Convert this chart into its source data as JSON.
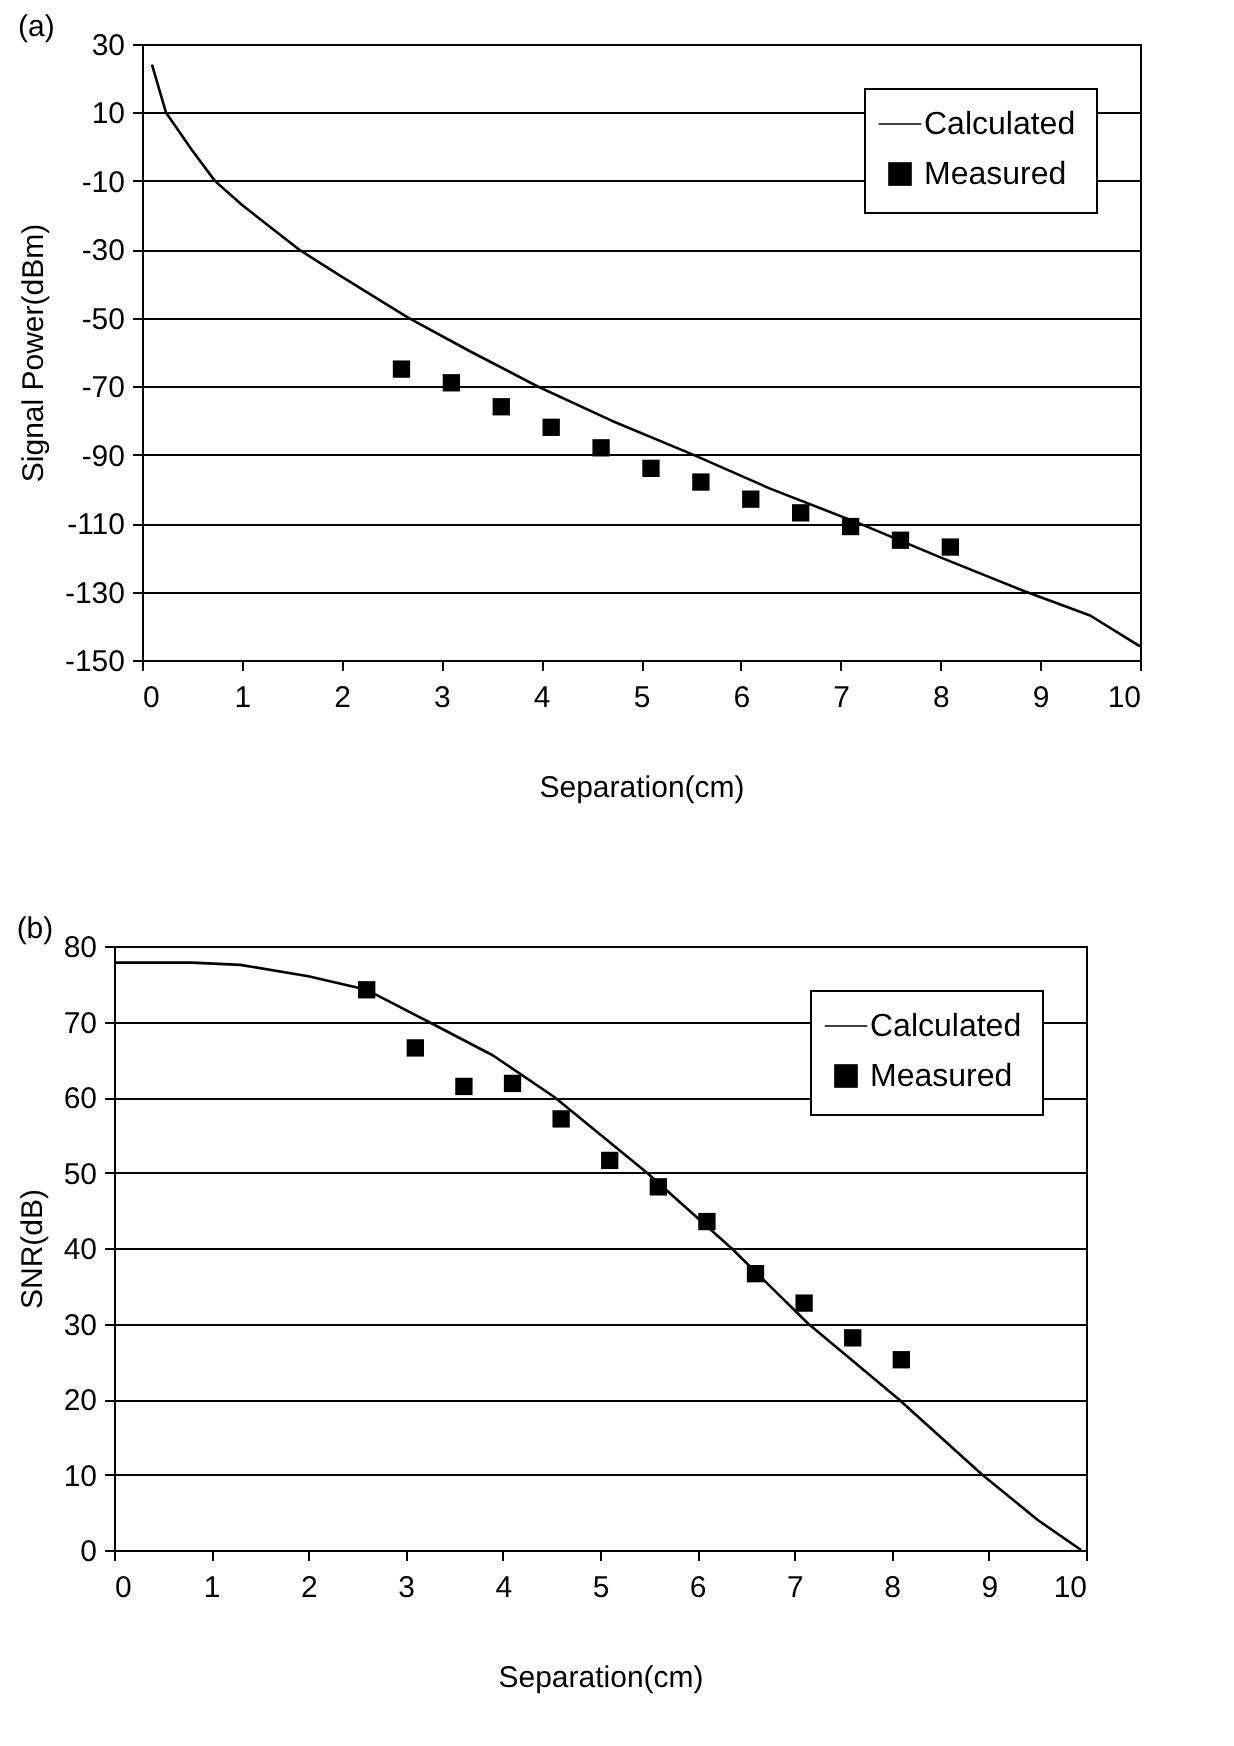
{
  "chart_data": [
    {
      "type": "line",
      "title": "(a)",
      "xlabel": "Separation(cm)",
      "ylabel": "Signal Power(dBm)",
      "xlim": [
        0,
        10
      ],
      "xticks": [
        0,
        1,
        2,
        3,
        4,
        5,
        6,
        7,
        8,
        9,
        10
      ],
      "ylim": [
        -150,
        30
      ],
      "yticks": [
        -150,
        -130,
        -110,
        -90,
        -70,
        -50,
        -30,
        -10,
        10,
        30
      ],
      "grid": "y",
      "legend": "top right",
      "series": [
        {
          "name": "Calculated",
          "type": "line",
          "color": "#000000",
          "x": [
            0.1,
            0.24,
            0.5,
            0.73,
            1.0,
            1.57,
            2.0,
            2.67,
            3.3,
            3.96,
            4.7,
            5.52,
            6.3,
            7.18,
            8.0,
            8.85,
            9.5,
            10.0
          ],
          "values": [
            24,
            10,
            -1,
            -10,
            -17,
            -30,
            -38,
            -50,
            -60,
            -70,
            -80,
            -90,
            -100,
            -110,
            -120,
            -130,
            -137,
            -146
          ]
        },
        {
          "name": "Measured",
          "type": "scatter",
          "marker": "square",
          "color": "#000000",
          "x": [
            2.6,
            3.1,
            3.6,
            4.1,
            4.6,
            5.1,
            5.6,
            6.1,
            6.6,
            7.1,
            7.6,
            8.1
          ],
          "values": [
            -65,
            -69,
            -76,
            -82,
            -88,
            -94,
            -98,
            -103,
            -107,
            -111,
            -115,
            -117
          ]
        }
      ]
    },
    {
      "type": "line",
      "title": "(b)",
      "xlabel": "Separation(cm)",
      "ylabel": "SNR(dB)",
      "xlim": [
        0,
        10
      ],
      "xticks": [
        0,
        1,
        2,
        3,
        4,
        5,
        6,
        7,
        8,
        9,
        10
      ],
      "ylim": [
        0,
        80
      ],
      "yticks": [
        0,
        10,
        20,
        30,
        40,
        50,
        60,
        70,
        80
      ],
      "grid": "y",
      "legend": "top right",
      "series": [
        {
          "name": "Calculated",
          "type": "line",
          "color": "#000000",
          "x": [
            0,
            0.8,
            1.3,
            2.0,
            2.6,
            3.23,
            3.9,
            4.53,
            5.48,
            6.35,
            7.14,
            8.07,
            8.93,
            9.5,
            9.95
          ],
          "values": [
            77.8,
            77.8,
            77.5,
            76,
            74.2,
            70,
            65.5,
            60,
            50,
            40,
            30,
            20,
            10,
            4,
            0
          ]
        },
        {
          "name": "Measured",
          "type": "scatter",
          "marker": "square",
          "color": "#000000",
          "x": [
            2.6,
            3.1,
            3.6,
            4.1,
            4.6,
            5.1,
            5.6,
            6.1,
            6.6,
            7.1,
            7.6,
            8.1
          ],
          "values": [
            74.2,
            66.5,
            61.4,
            61.8,
            57.1,
            51.6,
            48.1,
            43.5,
            36.6,
            32.7,
            28.1,
            25.2
          ]
        }
      ]
    }
  ]
}
